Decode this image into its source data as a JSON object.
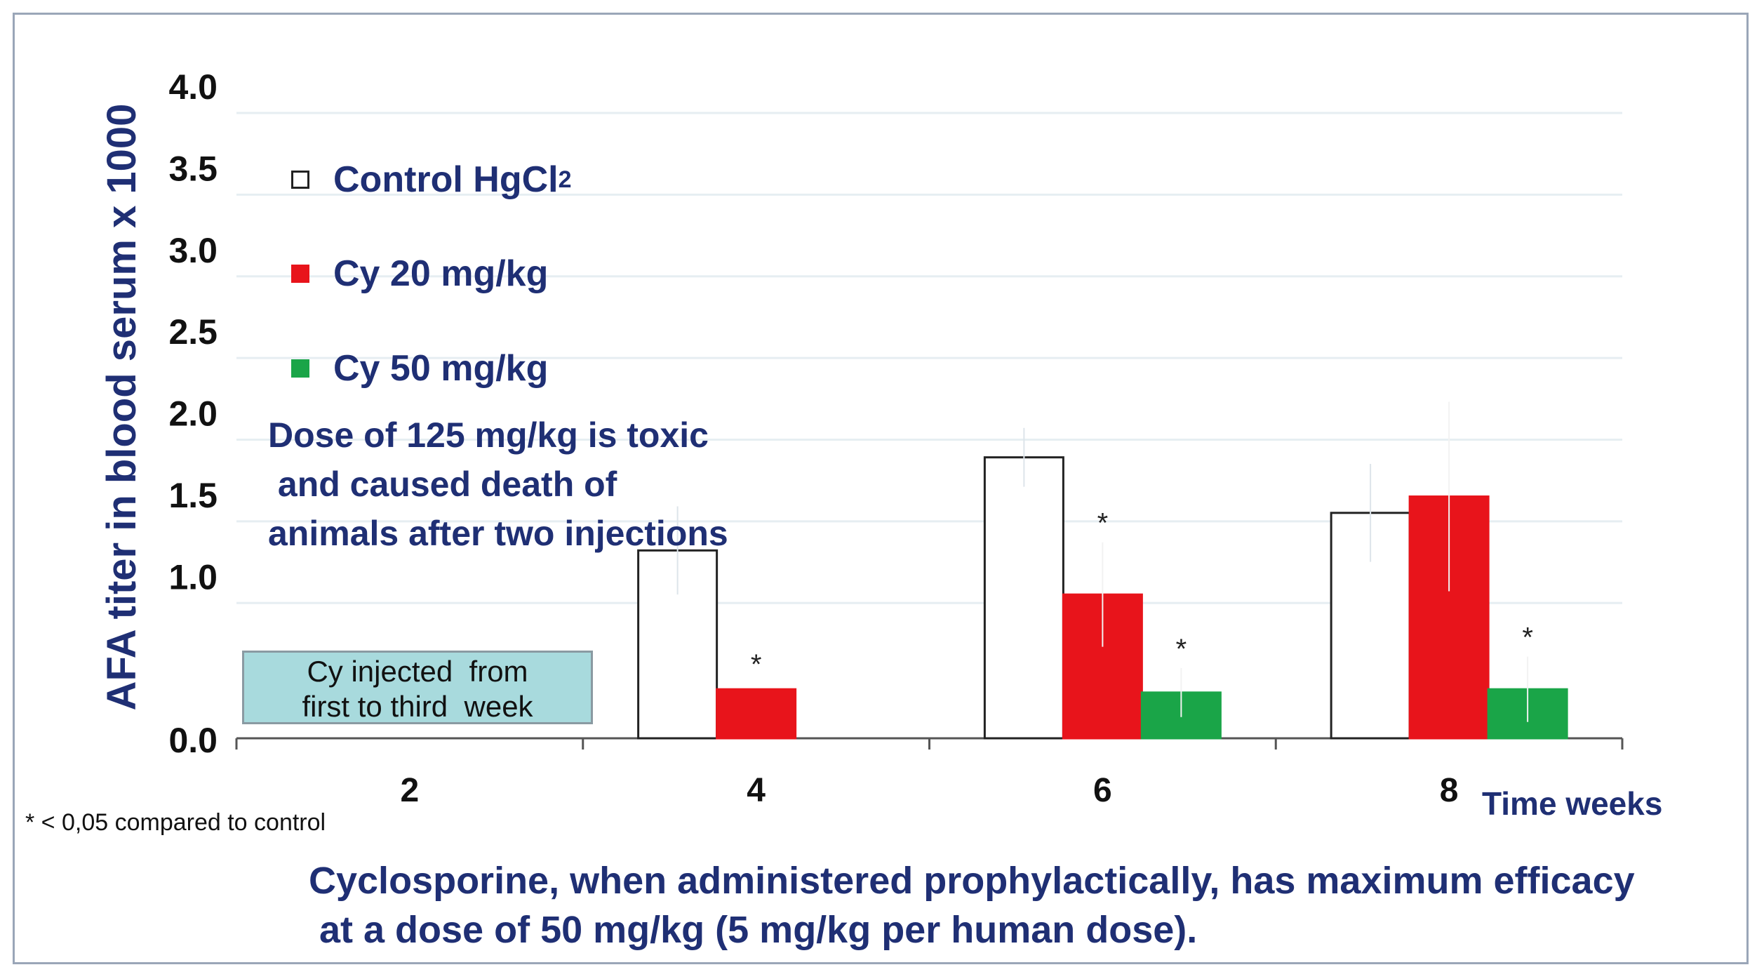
{
  "chart_data": {
    "type": "bar",
    "title": "",
    "xlabel": "Time weeks",
    "ylabel": "AFA titer in blood serum x 1000",
    "ylim": [
      0,
      4.0
    ],
    "yticks": [
      "0.0",
      "1.0",
      "1.5",
      "2.0",
      "2.5",
      "3.0",
      "3.5",
      "4.0"
    ],
    "ytick_values": [
      0.0,
      1.0,
      1.5,
      2.0,
      2.5,
      3.0,
      3.5,
      4.0
    ],
    "categories": [
      "2",
      "4",
      "6",
      "8"
    ],
    "grid": true,
    "series": [
      {
        "name": "Control HgCl",
        "name_sub": "2",
        "color": "#ffffff",
        "edge": "#222222",
        "values": [
          null,
          1.15,
          1.72,
          1.38
        ],
        "errors": [
          null,
          0.27,
          0.18,
          0.3
        ]
      },
      {
        "name": "Cy 20 mg/kg",
        "color": "#e8141b",
        "edge": "#e8141b",
        "values": [
          null,
          0.3,
          0.88,
          1.48
        ],
        "errors": [
          null,
          0.0,
          0.32,
          0.58
        ],
        "significant": [
          false,
          true,
          true,
          false
        ]
      },
      {
        "name": "Cy 50 mg/kg",
        "color": "#1aa548",
        "edge": "#1aa548",
        "values": [
          null,
          null,
          0.28,
          0.3
        ],
        "errors": [
          null,
          null,
          0.15,
          0.2
        ],
        "significant": [
          false,
          false,
          true,
          true
        ]
      }
    ],
    "significance_marker": "*",
    "annotations": {
      "toxic_note": "Dose of 125 mg/kg is toxic\n and caused death of\nanimals after two injections",
      "injection_box": "Cy injected  from\nfirst to third  week",
      "footnote": "* < 0,05 compared to control",
      "conclusion": "Cyclosporine, when administered prophylactically, has maximum efficacy\n at a dose of 50 mg/kg (5 mg/kg per human dose)."
    }
  },
  "colors": {
    "text_blue": "#1f2f74",
    "red": "#e8141b",
    "green": "#1aa548",
    "box": "#a8dadd"
  }
}
